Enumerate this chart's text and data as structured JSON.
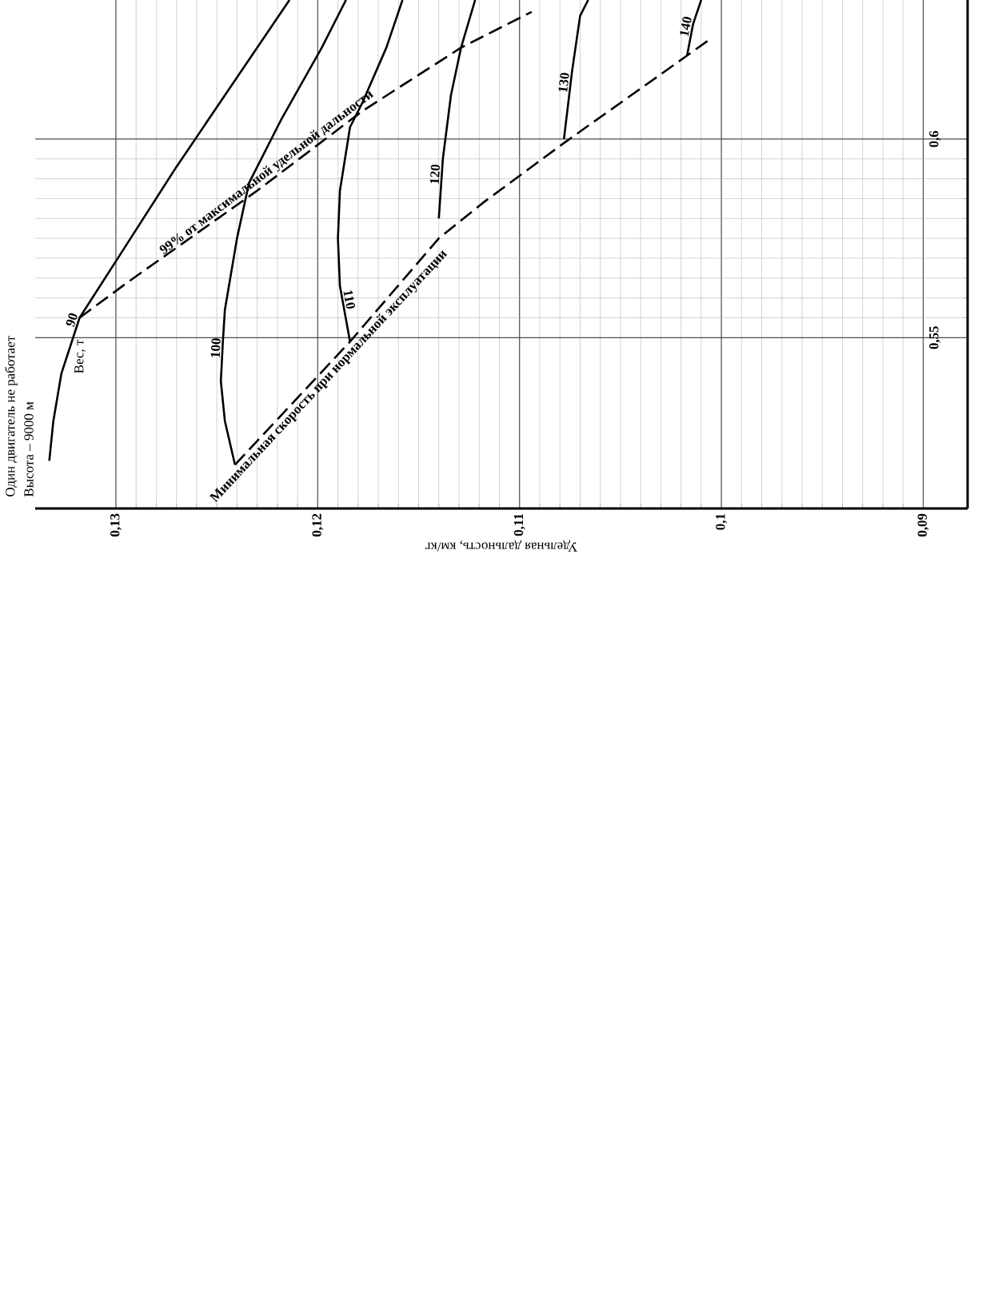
{
  "chart_data": {
    "type": "line",
    "xlabel": "Удельная дальность, км/кг",
    "annotations": [
      "Один двигатель не работает",
      "Высота – 9000 м",
      "Вес, т"
    ],
    "xlim": [
      0.134,
      0.0878
    ],
    "ylim": [
      0.507,
      0.635
    ],
    "xticks": [
      {
        "value": 0.09,
        "label": "0,09"
      },
      {
        "value": 0.1,
        "label": "0,1"
      },
      {
        "value": 0.11,
        "label": "0,11"
      },
      {
        "value": 0.12,
        "label": "0,12"
      },
      {
        "value": 0.13,
        "label": "0,13"
      }
    ],
    "yticks": [
      {
        "value": 0.55,
        "label": "0,55"
      },
      {
        "value": 0.6,
        "label": "0,6"
      }
    ],
    "grid": true,
    "series": [
      {
        "name": "90",
        "color": "#000000",
        "x": [
          0.1333,
          0.1331,
          0.1327,
          0.1318,
          0.1294,
          0.127,
          0.1242,
          0.1214
        ],
        "values": [
          0.519,
          0.529,
          0.541,
          0.555,
          0.574,
          0.593,
          0.614,
          0.635
        ]
      },
      {
        "name": "100",
        "color": "#000000",
        "x": [
          0.1241,
          0.1246,
          0.1248,
          0.1247,
          0.1246,
          0.124,
          0.1234,
          0.1218,
          0.1198,
          0.1186
        ],
        "values": [
          0.518,
          0.529,
          0.539,
          0.549,
          0.557,
          0.575,
          0.589,
          0.605,
          0.623,
          0.635
        ]
      },
      {
        "name": "110",
        "color": "#000000",
        "x": [
          0.1184,
          0.1189,
          0.119,
          0.1189,
          0.1184,
          0.1178,
          0.1166,
          0.1158
        ],
        "values": [
          0.549,
          0.563,
          0.575,
          0.587,
          0.603,
          0.609,
          0.623,
          0.635
        ]
      },
      {
        "name": "120",
        "color": "#000000",
        "x": [
          0.114,
          0.1138,
          0.1134,
          0.1129,
          0.1122
        ],
        "values": [
          0.58,
          0.595,
          0.611,
          0.623,
          0.635
        ]
      },
      {
        "name": "130",
        "color": "#000000",
        "x": [
          0.1078,
          0.1074,
          0.107,
          0.1066
        ],
        "values": [
          0.6,
          0.617,
          0.631,
          0.635
        ]
      },
      {
        "name": "140",
        "color": "#000000",
        "x": [
          0.1017,
          0.1014,
          0.101
        ],
        "values": [
          0.621,
          0.629,
          0.635
        ]
      },
      {
        "name": "99% от максимальной удельной дальности",
        "color": "#000000",
        "line_style": "dashed",
        "x": [
          0.1318,
          0.1294,
          0.123,
          0.1178,
          0.1129,
          0.1094
        ],
        "values": [
          0.555,
          0.564,
          0.587,
          0.607,
          0.623,
          0.632
        ]
      },
      {
        "name": "Минимальная скорость при нормальной эксплуатации",
        "color": "#000000",
        "line_style": "dashed",
        "x": [
          0.1241,
          0.1184,
          0.114,
          0.1118,
          0.1078,
          0.1017,
          0.1006
        ],
        "values": [
          0.518,
          0.549,
          0.575,
          0.584,
          0.599,
          0.621,
          0.625
        ]
      }
    ]
  }
}
